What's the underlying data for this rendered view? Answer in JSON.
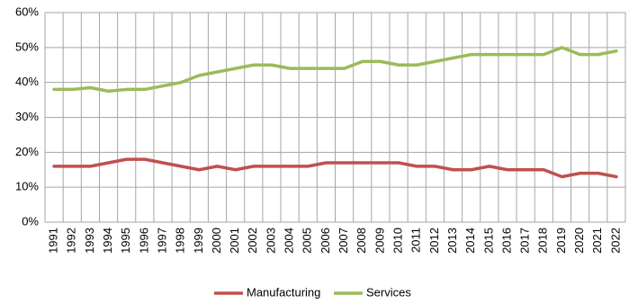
{
  "chart_data": {
    "type": "line",
    "categories": [
      "1991",
      "1992",
      "1993",
      "1994",
      "1995",
      "1996",
      "1997",
      "1998",
      "1999",
      "2000",
      "2001",
      "2002",
      "2003",
      "2004",
      "2005",
      "2006",
      "2007",
      "2008",
      "2009",
      "2010",
      "2011",
      "2012",
      "2013",
      "2014",
      "2015",
      "2016",
      "2017",
      "2018",
      "2019",
      "2020",
      "2021",
      "2022"
    ],
    "series": [
      {
        "name": "Manufacturing",
        "color": "#c0504d",
        "values": [
          16,
          16,
          16,
          17,
          18,
          18,
          17,
          16,
          15,
          16,
          15,
          16,
          16,
          16,
          16,
          17,
          17,
          17,
          17,
          17,
          16,
          16,
          15,
          15,
          16,
          15,
          15,
          15,
          13,
          14,
          14,
          13
        ]
      },
      {
        "name": "Services",
        "color": "#9bbb59",
        "values": [
          38,
          38,
          38.5,
          37.5,
          38,
          38,
          39,
          40,
          42,
          43,
          44,
          45,
          45,
          44,
          44,
          44,
          44,
          46,
          46,
          45,
          45,
          46,
          47,
          48,
          48,
          48,
          48,
          48,
          50,
          48,
          48,
          49
        ]
      }
    ],
    "ylim": [
      0,
      60
    ],
    "yticks": [
      {
        "value": 0,
        "label": "0%"
      },
      {
        "value": 10,
        "label": "10%"
      },
      {
        "value": 20,
        "label": "20%"
      },
      {
        "value": 30,
        "label": "30%"
      },
      {
        "value": 40,
        "label": "40%"
      },
      {
        "value": 50,
        "label": "50%"
      },
      {
        "value": 60,
        "label": "60%"
      }
    ],
    "grid": true,
    "legend": "bottom"
  }
}
